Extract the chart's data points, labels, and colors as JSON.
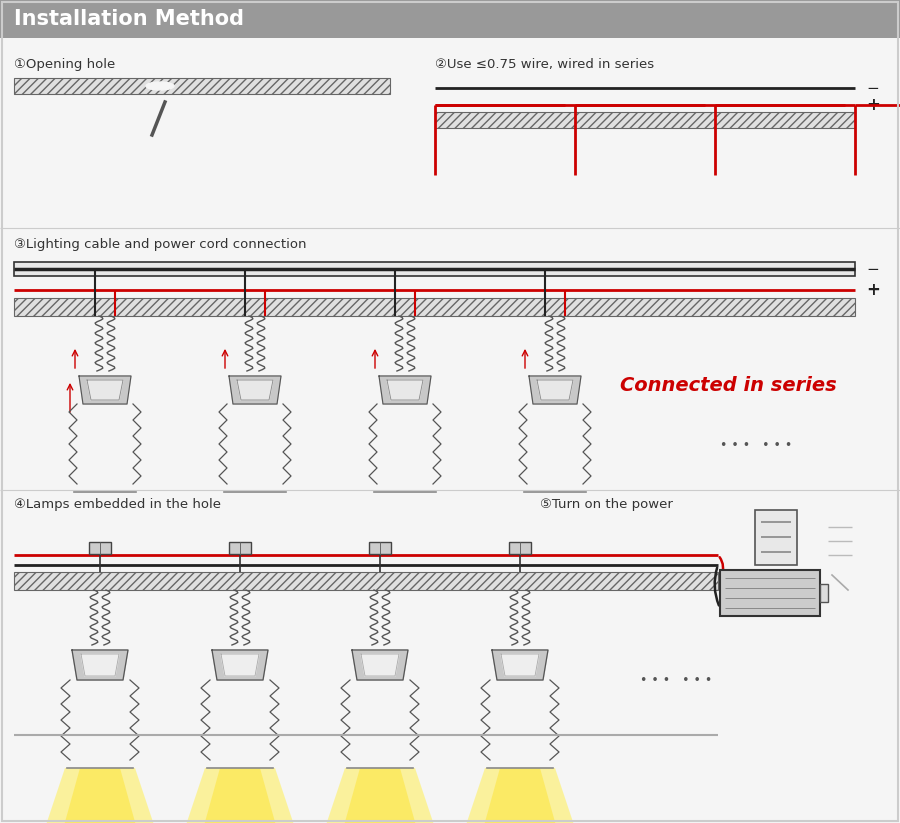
{
  "title": "Installation Method",
  "title_bg": "#999999",
  "title_text_color": "#ffffff",
  "body_bg": "#f5f5f5",
  "step1_label": "①Opening hole",
  "step2_label": "②Use ≤0.75 wire, wired in series",
  "step3_label": "③Lighting cable and power cord connection",
  "step4_label": "④Lamps embedded in the hole",
  "step5_label": "⑤Turn on the power",
  "connected_text": "Connected in series",
  "connected_color": "#cc0000",
  "wire_black": "#222222",
  "wire_red": "#cc0000",
  "hatch_color": "#aaaaaa",
  "lamp_gray": "#aaaaaa",
  "lamp_dark": "#555555",
  "section_divider": "#cccccc"
}
